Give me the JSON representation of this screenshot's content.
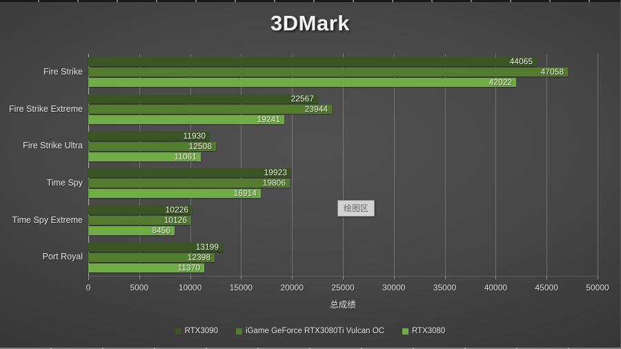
{
  "title": "3DMark",
  "plot_area_tooltip": "绘图区",
  "chart_data": {
    "type": "bar",
    "orientation": "horizontal",
    "title": "3DMark",
    "categories": [
      "Fire Strike",
      "Fire Strike Extreme",
      "Fire Strike Ultra",
      "Time Spy",
      "Time Spy Extreme",
      "Port Royal"
    ],
    "series": [
      {
        "name": "RTX3090",
        "color": "#3b5423",
        "values": [
          44065,
          22567,
          11930,
          19923,
          10226,
          13199
        ]
      },
      {
        "name": "iGame GeForce RTX3080Ti Vulcan OC",
        "color": "#537c2f",
        "values": [
          47058,
          23944,
          12508,
          19806,
          10126,
          12398
        ]
      },
      {
        "name": "RTX3080",
        "color": "#71ad46",
        "values": [
          42022,
          19241,
          11061,
          16914,
          8456,
          11370
        ]
      }
    ],
    "xlabel": "总成绩",
    "ylabel": "",
    "xlim": [
      0,
      50000
    ],
    "xticks": [
      0,
      5000,
      10000,
      15000,
      20000,
      25000,
      30000,
      35000,
      40000,
      45000,
      50000
    ],
    "grid": true,
    "legend_position": "bottom",
    "value_labels": "inside-end",
    "theme": "dark"
  },
  "colors": {
    "background_center": "#525252",
    "background_edge": "#212121",
    "text": "#e6e6e6",
    "gridline": "rgba(255,255,255,0.22)",
    "axis_line": "#b2b2b2"
  }
}
